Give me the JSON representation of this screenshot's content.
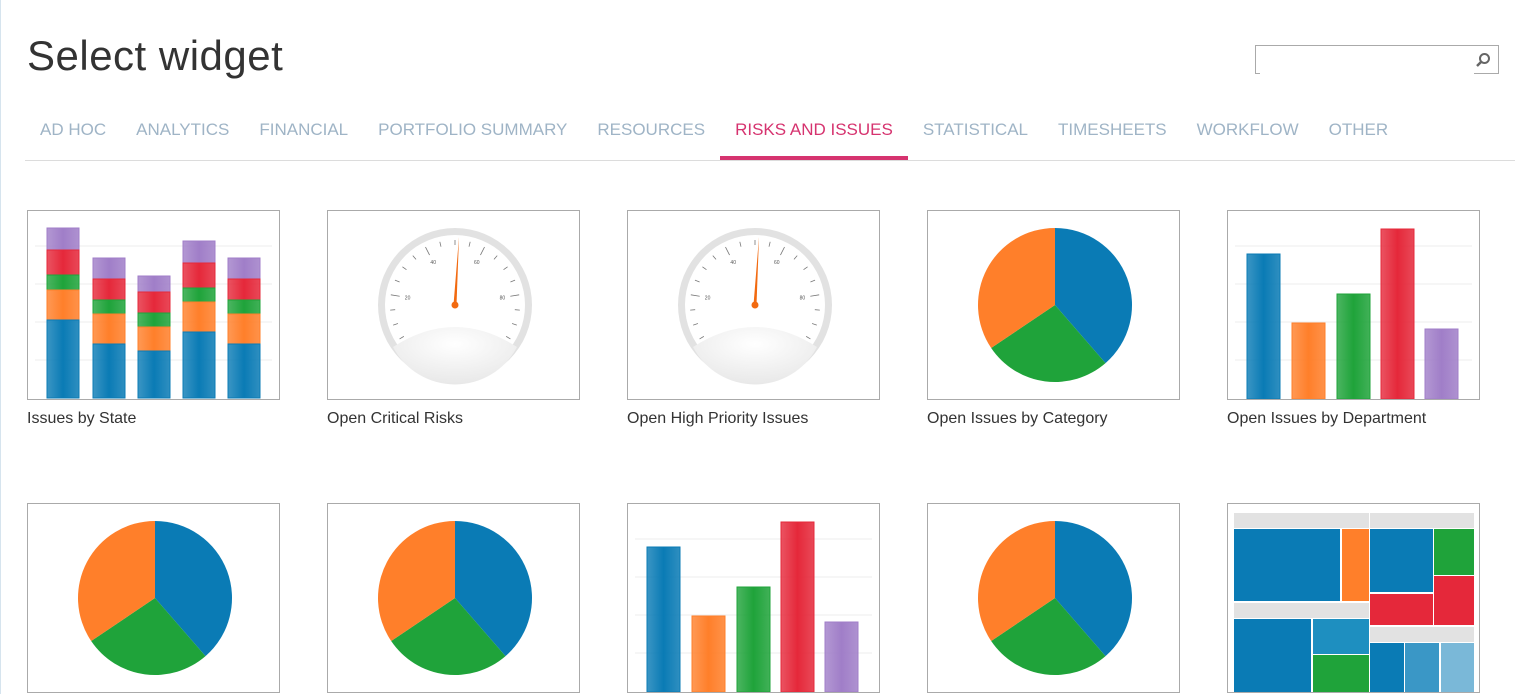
{
  "header": {
    "title": "Select widget",
    "search": {
      "value": "",
      "placeholder": "",
      "icon": "search-icon"
    }
  },
  "tabs": [
    {
      "label": "AD HOC",
      "active": false
    },
    {
      "label": "ANALYTICS",
      "active": false
    },
    {
      "label": "FINANCIAL",
      "active": false
    },
    {
      "label": "PORTFOLIO SUMMARY",
      "active": false
    },
    {
      "label": "RESOURCES",
      "active": false
    },
    {
      "label": "RISKS AND ISSUES",
      "active": true
    },
    {
      "label": "STATISTICAL",
      "active": false
    },
    {
      "label": "TIMESHEETS",
      "active": false
    },
    {
      "label": "WORKFLOW",
      "active": false
    },
    {
      "label": "OTHER",
      "active": false
    }
  ],
  "colors": {
    "accent": "#d6336f",
    "tab_text": "#9fb4c6",
    "blue": "#0a7bb5",
    "orange": "#ff7f2a",
    "green": "#1fa33a",
    "red": "#e5283a",
    "purple": "#a07ec8"
  },
  "widgets": [
    {
      "label": "Issues by State",
      "thumbnail": "stacked-bar"
    },
    {
      "label": "Open Critical Risks",
      "thumbnail": "gauge"
    },
    {
      "label": "Open High Priority Issues",
      "thumbnail": "gauge"
    },
    {
      "label": "Open Issues by Category",
      "thumbnail": "pie"
    },
    {
      "label": "Open Issues by Department",
      "thumbnail": "bar"
    },
    {
      "label": "",
      "thumbnail": "pie"
    },
    {
      "label": "",
      "thumbnail": "pie"
    },
    {
      "label": "",
      "thumbnail": "bar"
    },
    {
      "label": "",
      "thumbnail": "pie"
    },
    {
      "label": "",
      "thumbnail": "treemap"
    }
  ]
}
